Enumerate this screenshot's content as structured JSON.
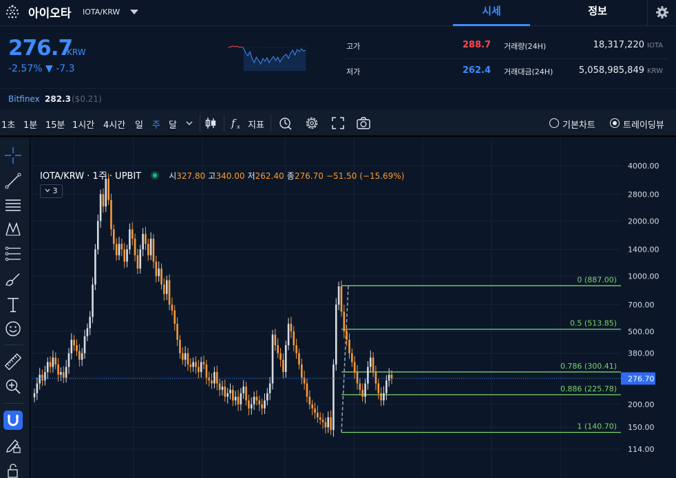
{
  "header": {
    "coin_name": "아이오타",
    "pair": "IOTA/KRW",
    "tabs": [
      {
        "label": "시세"
      },
      {
        "label": "정보"
      }
    ]
  },
  "price": {
    "current": "276.7",
    "unit": "KRW",
    "change_text": "-2.57% ▼ -7.3",
    "high_label": "고가",
    "high_value": "288.7",
    "low_label": "저가",
    "low_value": "262.4",
    "volume_label": "거래량(24H)",
    "volume_value": "18,317,220",
    "volume_unit": "IOTA",
    "amount_label": "거래대금(24H)",
    "amount_value": "5,058,985,849",
    "amount_unit": "KRW"
  },
  "exchange": {
    "name": "Bitfinex",
    "price": "282.3",
    "usd": "($0.21)"
  },
  "toolbar": {
    "timeframes": [
      "1초",
      "1분",
      "15분",
      "1시간",
      "4시간",
      "일",
      "주",
      "달"
    ],
    "active_timeframe": "주",
    "indicator_label": "지표",
    "chart_modes": [
      "기본차트",
      "트레이딩뷰"
    ],
    "selected_mode": "트레이딩뷰"
  },
  "legend": {
    "symbol": "IOTA/KRW · 1주 · UPBIT",
    "open_label": "시",
    "open": "327.80",
    "high_label": "고",
    "high": "340.00",
    "low_label": "저",
    "low": "262.40",
    "close_label": "종",
    "close": "276.70",
    "change": "−51.50 (−15.69%)",
    "indicator_count": "3"
  },
  "colors": {
    "accent": "#3f8cff",
    "down": "#3f8cff",
    "up": "#ff4a4a",
    "candle": "#f59a3a",
    "fib": "#7fd36a"
  },
  "chart_data": {
    "type": "candlestick",
    "scale": "log",
    "y_ticks": [
      4000,
      2800,
      2000,
      1400,
      1000,
      700,
      500,
      380,
      280,
      200,
      150,
      114
    ],
    "y_tick_labels": [
      "4000.00",
      "2800.00",
      "2000.00",
      "1400.00",
      "1000.00",
      "700.00",
      "500.00",
      "380.00",
      "280.00",
      "200.00",
      "150.00",
      "114.00"
    ],
    "last_price": 276.7,
    "last_price_label": "276.70",
    "fib_levels": [
      {
        "label": "0 (887.00)",
        "value": 887.0
      },
      {
        "label": "0.5 (513.85)",
        "value": 513.85
      },
      {
        "label": "0.786 (300.41)",
        "value": 300.41
      },
      {
        "label": "0.886 (225.78)",
        "value": 225.78
      },
      {
        "label": "1 (140.70)",
        "value": 140.7
      }
    ],
    "closes": [
      230,
      260,
      290,
      270,
      300,
      340,
      320,
      360,
      330,
      290,
      300,
      280,
      320,
      380,
      450,
      420,
      390,
      350,
      380,
      470,
      520,
      600,
      900,
      1400,
      2000,
      2800,
      2400,
      3400,
      2600,
      1800,
      1500,
      1300,
      1500,
      1400,
      1200,
      1400,
      1800,
      1600,
      1300,
      1100,
      1400,
      1700,
      1500,
      1300,
      1600,
      1200,
      1000,
      1100,
      900,
      800,
      950,
      700,
      650,
      550,
      450,
      380,
      350,
      380,
      330,
      320,
      340,
      320,
      300,
      340,
      330,
      280,
      270,
      260,
      300,
      260,
      240,
      250,
      220,
      230,
      240,
      210,
      220,
      200,
      230,
      250,
      210,
      190,
      200,
      220,
      210,
      200,
      190,
      210,
      230,
      260,
      480,
      420,
      380,
      350,
      300,
      420,
      550,
      500,
      420,
      380,
      330,
      280,
      260,
      220,
      200,
      190,
      180,
      170,
      165,
      160,
      150,
      170,
      145,
      330,
      700,
      880,
      640,
      500,
      450,
      380,
      340,
      300,
      260,
      240,
      220,
      260,
      320,
      360,
      300,
      260,
      230,
      210,
      230,
      270,
      290,
      276.7
    ]
  }
}
